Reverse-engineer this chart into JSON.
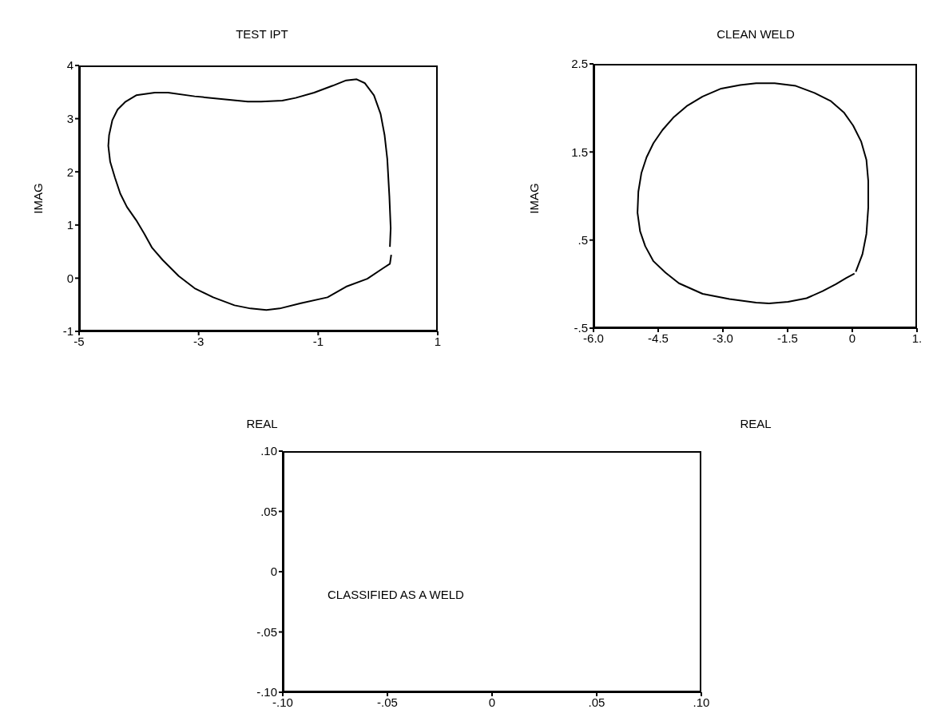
{
  "chart_data": [
    {
      "type": "line",
      "title": "TEST IPT",
      "xlabel": "REAL",
      "ylabel": "IMAG",
      "xlim": [
        -5,
        1
      ],
      "xticks": [
        -5,
        -3,
        -1,
        1
      ],
      "ylim": [
        -1,
        4
      ],
      "yticks": [
        -1,
        0,
        1,
        2,
        3,
        4
      ],
      "grid": false,
      "legend": false,
      "marker": "none",
      "line_style": "solid",
      "series": [
        {
          "color": "#000000",
          "x": [
            0.2,
            0.213,
            0.191,
            0.156,
            0.111,
            0.044,
            -0.067,
            -0.222,
            -0.356,
            -0.533,
            -0.756,
            -1.067,
            -1.378,
            -1.6,
            -1.956,
            -2.178,
            -2.622,
            -3.067,
            -3.511,
            -3.733,
            -4.044,
            -4.222,
            -4.356,
            -4.444,
            -4.498,
            -4.511,
            -4.48,
            -4.4,
            -4.311,
            -4.2,
            -4.044,
            -3.911,
            -3.778,
            -3.6,
            -3.333,
            -3.067,
            -2.756,
            -2.4,
            -2.133,
            -1.867,
            -1.644,
            -1.289,
            -0.844,
            -0.533,
            -0.178,
            0.089,
            0.2,
            0.222
          ],
          "values": [
            0.59,
            0.94,
            1.54,
            2.24,
            2.69,
            3.09,
            3.44,
            3.67,
            3.74,
            3.72,
            3.62,
            3.49,
            3.39,
            3.34,
            3.32,
            3.32,
            3.37,
            3.42,
            3.49,
            3.49,
            3.44,
            3.32,
            3.17,
            2.97,
            2.69,
            2.49,
            2.19,
            1.89,
            1.59,
            1.34,
            1.09,
            0.84,
            0.57,
            0.34,
            0.04,
            -0.19,
            -0.36,
            -0.51,
            -0.57,
            -0.6,
            -0.57,
            -0.47,
            -0.36,
            -0.16,
            -0.01,
            0.19,
            0.27,
            0.44
          ]
        }
      ]
    },
    {
      "type": "line",
      "title": "CLEAN WELD",
      "xlabel": "REAL",
      "ylabel": "IMAG",
      "xlim": [
        -6,
        1.5
      ],
      "xticks": [
        {
          "value": -6,
          "label": "-6.0"
        },
        -4.5,
        {
          "value": -3,
          "label": "-3.0"
        },
        -1.5,
        0,
        {
          "value": 1.5,
          "label": "1."
        }
      ],
      "ylim": [
        -0.5,
        2.5
      ],
      "yticks": [
        {
          "value": -0.5,
          "label": "-.5"
        },
        {
          "value": 0.5,
          "label": ".5"
        },
        1.5,
        2.5
      ],
      "grid": false,
      "legend": false,
      "marker": "none",
      "line_style": "solid",
      "series": [
        {
          "color": "#000000",
          "x": [
            0.08,
            0.235,
            0.327,
            0.37,
            0.37,
            0.327,
            0.204,
            0.019,
            -0.198,
            -0.506,
            -0.877,
            -1.31,
            -1.8,
            -2.23,
            -2.6,
            -3.04,
            -3.47,
            -3.84,
            -4.15,
            -4.4,
            -4.61,
            -4.77,
            -4.89,
            -4.96,
            -4.98,
            -4.92,
            -4.8,
            -4.61,
            -4.33,
            -4.02,
            -3.47,
            -2.85,
            -2.23,
            -1.93,
            -1.49,
            -1.06,
            -0.69,
            -0.38,
            -0.14,
            0.05
          ],
          "values": [
            0.14,
            0.34,
            0.57,
            0.87,
            1.17,
            1.41,
            1.62,
            1.8,
            1.95,
            2.08,
            2.17,
            2.25,
            2.28,
            2.28,
            2.26,
            2.22,
            2.13,
            2.02,
            1.89,
            1.75,
            1.6,
            1.44,
            1.26,
            1.05,
            0.81,
            0.6,
            0.43,
            0.26,
            0.13,
            0.01,
            -0.11,
            -0.17,
            -0.21,
            -0.22,
            -0.2,
            -0.16,
            -0.08,
            0.0,
            0.07,
            0.12
          ]
        }
      ]
    },
    {
      "type": "scatter",
      "annotations": [
        "CLASSIFIED AS A WELD"
      ],
      "xlim": [
        -0.1,
        0.1
      ],
      "xticks": [
        {
          "value": -0.1,
          "label": "-.10"
        },
        {
          "value": -0.05,
          "label": "-.05"
        },
        0,
        {
          "value": 0.05,
          "label": ".05"
        },
        {
          "value": 0.1,
          "label": ".10"
        }
      ],
      "ylim": [
        -0.1,
        0.1
      ],
      "yticks": [
        {
          "value": -0.1,
          "label": "-.10"
        },
        {
          "value": -0.05,
          "label": "-.05"
        },
        0,
        {
          "value": 0.05,
          "label": ".05"
        },
        {
          "value": 0.1,
          "label": ".10"
        }
      ],
      "grid": false,
      "legend": false
    }
  ]
}
